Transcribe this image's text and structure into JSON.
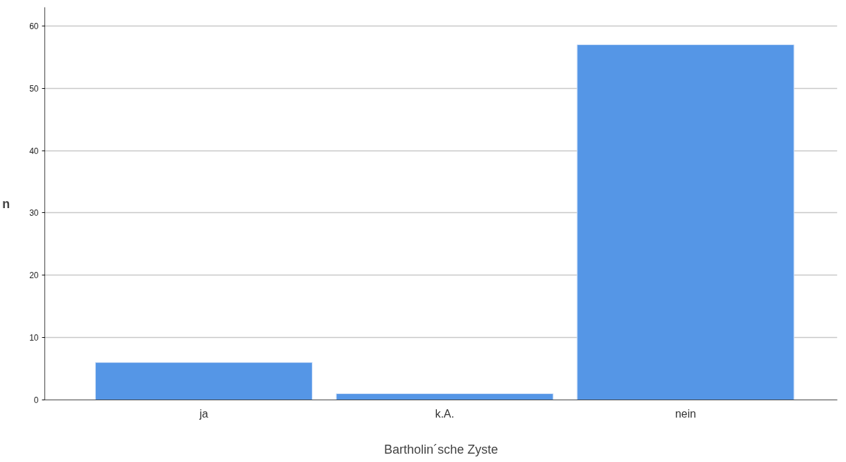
{
  "chart_data": {
    "type": "bar",
    "xlabel": "Bartholin´sche Zyste",
    "ylabel": "n",
    "categories": [
      "ja",
      "k.A.",
      "nein"
    ],
    "values": [
      6,
      1,
      57
    ],
    "color": "#5596e6",
    "ylim": [
      0,
      63
    ],
    "yticks": [
      0,
      10,
      20,
      30,
      40,
      50,
      60
    ],
    "grid": "y"
  }
}
